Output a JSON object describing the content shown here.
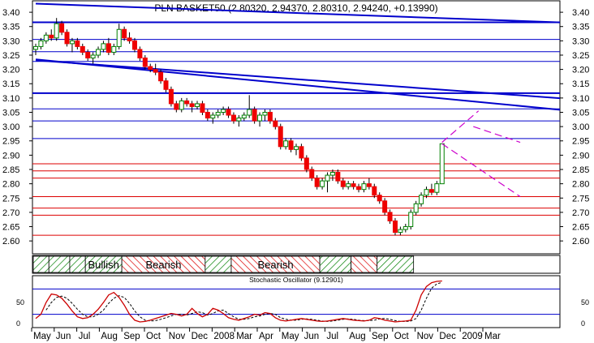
{
  "chart_data": {
    "type": "candlestick",
    "title": "PLN BASKET50 (2.80320, 2.94370, 2.80310, 2.94240, +0.13990)",
    "y_ticks": [
      "3.40",
      "3.35",
      "3.30",
      "3.25",
      "3.20",
      "3.15",
      "3.10",
      "3.05",
      "3.00",
      "2.95",
      "2.90",
      "2.85",
      "2.80",
      "2.75",
      "2.70",
      "2.65",
      "2.60"
    ],
    "ylim": [
      2.555,
      3.44
    ],
    "x_ticks": [
      "May",
      "Jun",
      "Jul",
      "Aug",
      "Sep",
      "Oct",
      "Nov",
      "Dec",
      "2008",
      "Mar",
      "Apr",
      "May",
      "Jun",
      "Jul",
      "Aug",
      "Sep",
      "Oct",
      "Nov",
      "Dec",
      "2009",
      "Mar"
    ],
    "candles": [
      [
        3.27,
        3.29,
        3.25,
        3.28
      ],
      [
        3.28,
        3.31,
        3.27,
        3.3
      ],
      [
        3.3,
        3.33,
        3.29,
        3.32
      ],
      [
        3.32,
        3.34,
        3.3,
        3.31
      ],
      [
        3.31,
        3.38,
        3.3,
        3.36
      ],
      [
        3.36,
        3.37,
        3.32,
        3.33
      ],
      [
        3.33,
        3.34,
        3.28,
        3.29
      ],
      [
        3.29,
        3.31,
        3.26,
        3.3
      ],
      [
        3.3,
        3.31,
        3.27,
        3.28
      ],
      [
        3.28,
        3.29,
        3.25,
        3.26
      ],
      [
        3.26,
        3.27,
        3.23,
        3.24
      ],
      [
        3.24,
        3.26,
        3.22,
        3.25
      ],
      [
        3.25,
        3.28,
        3.24,
        3.27
      ],
      [
        3.27,
        3.3,
        3.26,
        3.29
      ],
      [
        3.29,
        3.31,
        3.25,
        3.26
      ],
      [
        3.26,
        3.29,
        3.25,
        3.28
      ],
      [
        3.28,
        3.36,
        3.27,
        3.34
      ],
      [
        3.34,
        3.35,
        3.3,
        3.31
      ],
      [
        3.31,
        3.33,
        3.29,
        3.3
      ],
      [
        3.3,
        3.31,
        3.26,
        3.27
      ],
      [
        3.27,
        3.28,
        3.23,
        3.24
      ],
      [
        3.24,
        3.25,
        3.2,
        3.21
      ],
      [
        3.21,
        3.22,
        3.19,
        3.2
      ],
      [
        3.2,
        3.22,
        3.18,
        3.19
      ],
      [
        3.19,
        3.2,
        3.15,
        3.16
      ],
      [
        3.16,
        3.17,
        3.12,
        3.13
      ],
      [
        3.13,
        3.14,
        3.07,
        3.08
      ],
      [
        3.08,
        3.09,
        3.05,
        3.06
      ],
      [
        3.06,
        3.1,
        3.05,
        3.09
      ],
      [
        3.09,
        3.1,
        3.07,
        3.08
      ],
      [
        3.08,
        3.09,
        3.05,
        3.07
      ],
      [
        3.07,
        3.09,
        3.06,
        3.08
      ],
      [
        3.08,
        3.09,
        3.04,
        3.05
      ],
      [
        3.05,
        3.06,
        3.02,
        3.03
      ],
      [
        3.03,
        3.05,
        3.01,
        3.04
      ],
      [
        3.04,
        3.06,
        3.03,
        3.05
      ],
      [
        3.05,
        3.07,
        3.04,
        3.06
      ],
      [
        3.06,
        3.07,
        3.03,
        3.04
      ],
      [
        3.04,
        3.05,
        3.01,
        3.02
      ],
      [
        3.02,
        3.04,
        3.0,
        3.03
      ],
      [
        3.03,
        3.05,
        3.02,
        3.04
      ],
      [
        3.04,
        3.11,
        3.03,
        3.06
      ],
      [
        3.06,
        3.07,
        3.01,
        3.02
      ],
      [
        3.02,
        3.05,
        3.0,
        3.04
      ],
      [
        3.04,
        3.06,
        3.02,
        3.05
      ],
      [
        3.05,
        3.06,
        3.01,
        3.02
      ],
      [
        3.02,
        3.03,
        2.99,
        3.0
      ],
      [
        3.0,
        3.01,
        2.92,
        2.93
      ],
      [
        2.93,
        2.96,
        2.92,
        2.95
      ],
      [
        2.95,
        2.96,
        2.91,
        2.92
      ],
      [
        2.92,
        2.94,
        2.9,
        2.93
      ],
      [
        2.93,
        2.94,
        2.88,
        2.89
      ],
      [
        2.89,
        2.9,
        2.84,
        2.85
      ],
      [
        2.85,
        2.86,
        2.81,
        2.82
      ],
      [
        2.82,
        2.83,
        2.78,
        2.79
      ],
      [
        2.79,
        2.82,
        2.78,
        2.81
      ],
      [
        2.81,
        2.84,
        2.77,
        2.83
      ],
      [
        2.83,
        2.85,
        2.81,
        2.84
      ],
      [
        2.84,
        2.85,
        2.8,
        2.81
      ],
      [
        2.81,
        2.82,
        2.78,
        2.79
      ],
      [
        2.79,
        2.81,
        2.78,
        2.8
      ],
      [
        2.8,
        2.81,
        2.78,
        2.79
      ],
      [
        2.79,
        2.8,
        2.77,
        2.78
      ],
      [
        2.78,
        2.81,
        2.77,
        2.8
      ],
      [
        2.8,
        2.82,
        2.78,
        2.79
      ],
      [
        2.79,
        2.8,
        2.75,
        2.76
      ],
      [
        2.76,
        2.77,
        2.73,
        2.74
      ],
      [
        2.74,
        2.75,
        2.69,
        2.7
      ],
      [
        2.7,
        2.71,
        2.66,
        2.67
      ],
      [
        2.67,
        2.68,
        2.62,
        2.63
      ],
      [
        2.63,
        2.65,
        2.62,
        2.64
      ],
      [
        2.64,
        2.66,
        2.63,
        2.65
      ],
      [
        2.65,
        2.71,
        2.64,
        2.7
      ],
      [
        2.7,
        2.74,
        2.69,
        2.73
      ],
      [
        2.73,
        2.77,
        2.72,
        2.76
      ],
      [
        2.76,
        2.79,
        2.75,
        2.78
      ],
      [
        2.78,
        2.8,
        2.76,
        2.77
      ],
      [
        2.77,
        2.81,
        2.76,
        2.8
      ],
      [
        2.8,
        2.94,
        2.8,
        2.94
      ]
    ],
    "h_lines": [
      {
        "value": 3.365,
        "color": "#0000cc",
        "width": 2
      },
      {
        "value": 3.305,
        "color": "#0000cc",
        "width": 1
      },
      {
        "value": 3.262,
        "color": "#0000cc",
        "width": 1
      },
      {
        "value": 3.228,
        "color": "#0000cc",
        "width": 1
      },
      {
        "value": 3.117,
        "color": "#0000cc",
        "width": 2
      },
      {
        "value": 3.062,
        "color": "#0000cc",
        "width": 1
      },
      {
        "value": 3.02,
        "color": "#0000cc",
        "width": 1
      },
      {
        "value": 2.958,
        "color": "#0000cc",
        "width": 1
      },
      {
        "value": 2.87,
        "color": "#dd0000",
        "width": 1
      },
      {
        "value": 2.845,
        "color": "#dd0000",
        "width": 1
      },
      {
        "value": 2.82,
        "color": "#dd0000",
        "width": 1
      },
      {
        "value": 2.755,
        "color": "#dd0000",
        "width": 1
      },
      {
        "value": 2.715,
        "color": "#dd0000",
        "width": 1
      },
      {
        "value": 2.69,
        "color": "#dd0000",
        "width": 1
      },
      {
        "value": 2.62,
        "color": "#dd0000",
        "width": 1
      }
    ],
    "trend_lines": [
      {
        "from": [
          0,
          3.43
        ],
        "to": [
          200,
          3.3
        ]
      },
      {
        "from": [
          0,
          3.235
        ],
        "to": [
          200,
          2.885
        ]
      },
      {
        "from": [
          0,
          3.232
        ],
        "to": [
          200,
          2.968
        ]
      }
    ],
    "projection_lines": [
      {
        "from": [
          78,
          2.945
        ],
        "to": [
          85,
          3.055
        ]
      },
      {
        "from": [
          78,
          2.94
        ],
        "to": [
          93,
          2.755
        ]
      },
      {
        "from": [
          84,
          3.0
        ],
        "to": [
          93,
          2.945
        ]
      }
    ],
    "sentiment_bands": [
      {
        "label": "",
        "kind": "bull",
        "start": 0,
        "end": 3
      },
      {
        "label": "",
        "kind": "bull",
        "start": 3,
        "end": 7
      },
      {
        "label": "",
        "kind": "bull",
        "start": 7,
        "end": 10
      },
      {
        "label": "Bullish",
        "kind": "bull",
        "start": 10,
        "end": 17
      },
      {
        "label": "Bearish",
        "kind": "bear",
        "start": 17,
        "end": 33
      },
      {
        "label": "",
        "kind": "bull",
        "start": 33,
        "end": 38
      },
      {
        "label": "Bearish",
        "kind": "bear",
        "start": 38,
        "end": 55
      },
      {
        "label": "",
        "kind": "bull",
        "start": 55,
        "end": 61
      },
      {
        "label": "",
        "kind": "bear",
        "start": 61,
        "end": 66
      },
      {
        "label": "",
        "kind": "bull",
        "start": 66,
        "end": 73
      }
    ],
    "oscillator": {
      "title": "Stochastic Oscillator (9.12901)",
      "ticks": [
        "50",
        "0"
      ],
      "levels": [
        80,
        20
      ],
      "k": [
        10,
        20,
        48,
        68,
        66,
        58,
        44,
        28,
        14,
        10,
        12,
        20,
        32,
        48,
        66,
        72,
        60,
        42,
        20,
        6,
        2,
        3,
        6,
        10,
        14,
        18,
        22,
        20,
        16,
        20,
        34,
        22,
        14,
        20,
        34,
        30,
        22,
        12,
        8,
        6,
        10,
        14,
        20,
        18,
        24,
        22,
        12,
        6,
        4,
        6,
        8,
        10,
        8,
        6,
        4,
        3,
        4,
        6,
        8,
        10,
        8,
        6,
        5,
        4,
        6,
        12,
        10,
        6,
        4,
        2,
        3,
        4,
        6,
        30,
        66,
        86,
        95,
        98,
        99
      ],
      "d": [
        null,
        null,
        30,
        48,
        60,
        63,
        58,
        46,
        32,
        20,
        14,
        14,
        20,
        30,
        46,
        58,
        64,
        60,
        46,
        28,
        14,
        6,
        4,
        5,
        8,
        12,
        16,
        20,
        20,
        18,
        22,
        26,
        24,
        18,
        22,
        28,
        30,
        22,
        14,
        8,
        8,
        10,
        14,
        16,
        20,
        22,
        20,
        12,
        8,
        6,
        6,
        8,
        9,
        8,
        6,
        4,
        3,
        4,
        6,
        8,
        9,
        8,
        6,
        5,
        5,
        6,
        9,
        10,
        8,
        5,
        3,
        3,
        4,
        10,
        30,
        58,
        82,
        92,
        96
      ]
    }
  }
}
